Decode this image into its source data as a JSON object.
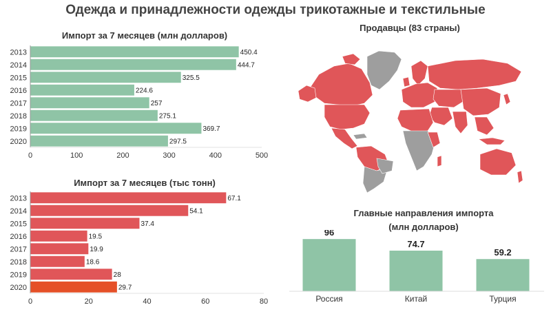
{
  "page": {
    "title": "Одежда и принадлежности одежды трикотажные и текстильные"
  },
  "chart_data": [
    {
      "type": "bar",
      "orientation": "horizontal",
      "title": "Импорт за 7 месяцев (млн долларов)",
      "categories": [
        "2013",
        "2014",
        "2015",
        "2016",
        "2017",
        "2018",
        "2019",
        "2020"
      ],
      "values": [
        450.4,
        444.7,
        325.5,
        224.6,
        257,
        275.1,
        369.7,
        297.5
      ],
      "value_labels": [
        "450.4",
        "444.7",
        "325.5",
        "224.6",
        "257",
        "275.1",
        "369.7",
        "297.5"
      ],
      "xlim": [
        0,
        500
      ],
      "xticks": [
        "0",
        "100",
        "200",
        "300",
        "400",
        "500"
      ],
      "colors": {
        "bar": "#8fc4a6"
      },
      "grid": false
    },
    {
      "type": "bar",
      "orientation": "horizontal",
      "title": "Импорт за 7 месяцев (тыс тонн)",
      "categories": [
        "2013",
        "2014",
        "2015",
        "2016",
        "2017",
        "2018",
        "2019",
        "2020"
      ],
      "values": [
        67.1,
        54.1,
        37.4,
        19.5,
        19.9,
        18.6,
        28,
        29.7
      ],
      "value_labels": [
        "67.1",
        "54.1",
        "37.4",
        "19.5",
        "19.9",
        "18.6",
        "28",
        "29.7"
      ],
      "xlim": [
        0,
        80
      ],
      "xticks": [
        "0",
        "20",
        "40",
        "60",
        "80"
      ],
      "colors": {
        "bar": "#e05659",
        "highlight": "#e55028"
      },
      "highlight_category": "2020",
      "grid": false
    },
    {
      "type": "bar",
      "orientation": "vertical",
      "title_line1": "Главные направления импорта",
      "title_line2": "(млн долларов)",
      "categories": [
        "Россия",
        "Китай",
        "Турция"
      ],
      "values": [
        96,
        74.7,
        59.2
      ],
      "value_labels": [
        "96",
        "74.7",
        "59.2"
      ],
      "ylim": [
        0,
        100
      ],
      "colors": {
        "bar": "#8fc4a6"
      },
      "grid": false
    }
  ],
  "map": {
    "title": "Продавцы (83 страны)",
    "colors": {
      "seller": "#e05659",
      "other": "#9e9e9e"
    }
  }
}
